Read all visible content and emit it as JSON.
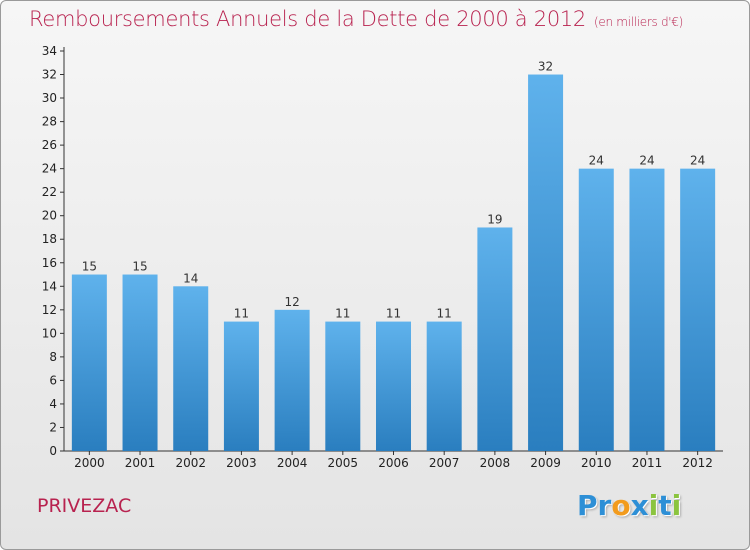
{
  "chart_data": {
    "type": "bar",
    "title": "Remboursements Annuels de la Dette de 2000 à 2012",
    "unit_note": "(en milliers d'€)",
    "categories": [
      "2000",
      "2001",
      "2002",
      "2003",
      "2004",
      "2005",
      "2006",
      "2007",
      "2008",
      "2009",
      "2010",
      "2011",
      "2012"
    ],
    "values": [
      15,
      15,
      14,
      11,
      12,
      11,
      11,
      11,
      19,
      32,
      24,
      24,
      24
    ],
    "ylim": [
      0,
      34
    ],
    "yticks": [
      0,
      2,
      4,
      6,
      8,
      10,
      12,
      14,
      16,
      18,
      20,
      22,
      24,
      26,
      28,
      30,
      32,
      34
    ],
    "grid": false,
    "bar_color_top": "#5fb2ec",
    "bar_color_bottom": "#2a7ebf"
  },
  "location": "PRIVEZAC",
  "logo": {
    "letters": [
      "P",
      "r",
      "o",
      "x",
      "i",
      "t",
      "i"
    ],
    "colors": [
      "#2d8fd6",
      "#2d8fd6",
      "#f29b1d",
      "#2d8fd6",
      "#8bc43f",
      "#2d8fd6",
      "#8bc43f"
    ]
  }
}
